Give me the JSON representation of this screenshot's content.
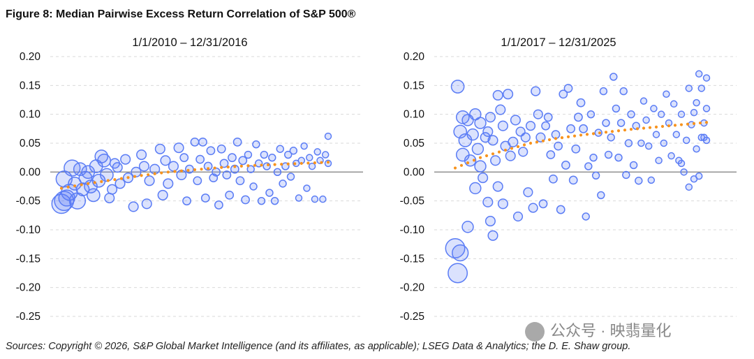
{
  "figure_title": "Figure 8: Median Pairwise Excess Return Correlation of S&P 500®",
  "source": "Sources: Copyright © 2026, S&P Global Market Intelligence (and its affiliates, as applicable); LSEG Data & Analytics; the D. E. Shaw group.",
  "watermark": "公众号 · 映翡量化",
  "colors": {
    "points": "#5a7cf5",
    "trend": "#f7931e",
    "zero_line": "#888888"
  },
  "chart_data": [
    {
      "type": "scatter",
      "title": "1/1/2010 – 12/31/2016",
      "xlabel": "",
      "ylabel": "",
      "ylim": [
        -0.25,
        0.2
      ],
      "xlim": [
        0,
        100
      ],
      "yticks": [
        "0.20",
        "0.15",
        "0.10",
        "0.05",
        "0.00",
        "-0.05",
        "-0.10",
        "-0.15",
        "-0.20",
        "-0.25"
      ],
      "grid": true,
      "points_format": [
        "x_index",
        "y",
        "relative_size"
      ],
      "points": [
        [
          0,
          -0.055,
          5
        ],
        [
          1,
          -0.05,
          5
        ],
        [
          2,
          -0.045,
          4
        ],
        [
          1,
          -0.012,
          4
        ],
        [
          3,
          -0.035,
          4
        ],
        [
          4,
          0.007,
          4
        ],
        [
          5,
          -0.02,
          3
        ],
        [
          6,
          -0.05,
          4
        ],
        [
          7,
          0.005,
          3
        ],
        [
          8,
          -0.03,
          3
        ],
        [
          9,
          -0.01,
          3
        ],
        [
          10,
          0.0,
          3
        ],
        [
          11,
          -0.025,
          3
        ],
        [
          12,
          -0.04,
          3
        ],
        [
          13,
          0.01,
          3
        ],
        [
          14,
          -0.015,
          3
        ],
        [
          15,
          0.027,
          3
        ],
        [
          16,
          0.02,
          3
        ],
        [
          17,
          -0.005,
          3
        ],
        [
          18,
          -0.045,
          2
        ],
        [
          19,
          -0.03,
          2
        ],
        [
          20,
          0.015,
          2
        ],
        [
          21,
          0.008,
          2
        ],
        [
          22,
          -0.02,
          2
        ],
        [
          24,
          0.022,
          2
        ],
        [
          25,
          -0.01,
          2
        ],
        [
          27,
          -0.06,
          2
        ],
        [
          28,
          0.0,
          2
        ],
        [
          30,
          0.03,
          2
        ],
        [
          31,
          0.01,
          2
        ],
        [
          32,
          -0.055,
          2
        ],
        [
          33,
          -0.015,
          2
        ],
        [
          35,
          0.005,
          2
        ],
        [
          37,
          0.04,
          2
        ],
        [
          38,
          -0.04,
          2
        ],
        [
          39,
          0.02,
          2
        ],
        [
          40,
          -0.02,
          2
        ],
        [
          42,
          0.01,
          2
        ],
        [
          44,
          0.042,
          2
        ],
        [
          45,
          -0.005,
          2
        ],
        [
          46,
          0.025,
          1.5
        ],
        [
          47,
          -0.05,
          1.5
        ],
        [
          48,
          0.005,
          1.5
        ],
        [
          50,
          0.052,
          1.5
        ],
        [
          51,
          -0.015,
          1.5
        ],
        [
          52,
          0.022,
          1.5
        ],
        [
          53,
          0.052,
          1.5
        ],
        [
          54,
          -0.045,
          1.5
        ],
        [
          55,
          0.01,
          1.5
        ],
        [
          56,
          0.037,
          1.5
        ],
        [
          57,
          -0.01,
          1.5
        ],
        [
          58,
          0.0,
          1.5
        ],
        [
          59,
          -0.057,
          1.5
        ],
        [
          60,
          0.04,
          1.5
        ],
        [
          61,
          0.015,
          1.5
        ],
        [
          62,
          -0.005,
          1.5
        ],
        [
          63,
          -0.04,
          1.5
        ],
        [
          64,
          0.025,
          1.5
        ],
        [
          65,
          0.005,
          1.5
        ],
        [
          66,
          0.052,
          1.5
        ],
        [
          67,
          -0.015,
          1.5
        ],
        [
          68,
          0.02,
          1.5
        ],
        [
          69,
          -0.048,
          1.5
        ],
        [
          70,
          0.03,
          1.2
        ],
        [
          71,
          0.005,
          1.2
        ],
        [
          72,
          -0.025,
          1.2
        ],
        [
          73,
          0.048,
          1.2
        ],
        [
          74,
          0.015,
          1.2
        ],
        [
          75,
          -0.05,
          1.2
        ],
        [
          76,
          0.03,
          1.2
        ],
        [
          77,
          0.01,
          1.2
        ],
        [
          78,
          -0.036,
          1.2
        ],
        [
          79,
          0.025,
          1.2
        ],
        [
          80,
          -0.05,
          1.2
        ],
        [
          81,
          0.0,
          1.2
        ],
        [
          82,
          0.04,
          1.2
        ],
        [
          83,
          -0.02,
          1.2
        ],
        [
          84,
          0.01,
          1.2
        ],
        [
          85,
          0.03,
          1.2
        ],
        [
          86,
          -0.008,
          1.2
        ],
        [
          87,
          0.037,
          1.2
        ],
        [
          88,
          0.015,
          1
        ],
        [
          89,
          -0.045,
          1
        ],
        [
          90,
          0.02,
          1
        ],
        [
          91,
          0.045,
          1
        ],
        [
          92,
          -0.028,
          1
        ],
        [
          93,
          0.025,
          1
        ],
        [
          94,
          0.01,
          1
        ],
        [
          95,
          -0.047,
          1
        ],
        [
          96,
          0.035,
          1
        ],
        [
          97,
          0.02,
          1
        ],
        [
          98,
          -0.047,
          1
        ],
        [
          99,
          0.03,
          1
        ],
        [
          100,
          0.062,
          1
        ],
        [
          100,
          0.015,
          1
        ]
      ],
      "trend": {
        "x": [
          0,
          10,
          20,
          30,
          40,
          50,
          60,
          70,
          80,
          90,
          100
        ],
        "y": [
          -0.028,
          -0.02,
          -0.013,
          -0.006,
          0.0,
          0.004,
          0.008,
          0.011,
          0.013,
          0.015,
          0.017
        ]
      }
    },
    {
      "type": "scatter",
      "title": "1/1/2017 – 12/31/2025",
      "xlabel": "",
      "ylabel": "",
      "ylim": [
        -0.25,
        0.2
      ],
      "xlim": [
        0,
        100
      ],
      "yticks": [
        "0.20",
        "0.15",
        "0.10",
        "0.05",
        "0.00",
        "-0.05",
        "-0.10",
        "-0.15",
        "-0.20",
        "-0.25"
      ],
      "grid": true,
      "points_format": [
        "x_index",
        "y",
        "relative_size"
      ],
      "points": [
        [
          1,
          0.148,
          3
        ],
        [
          1,
          -0.175,
          5
        ],
        [
          0,
          -0.132,
          5
        ],
        [
          2,
          -0.14,
          4
        ],
        [
          2,
          0.07,
          3
        ],
        [
          3,
          0.095,
          3
        ],
        [
          3,
          0.03,
          3
        ],
        [
          4,
          0.055,
          3
        ],
        [
          5,
          -0.095,
          2.5
        ],
        [
          5,
          0.09,
          2.5
        ],
        [
          6,
          0.02,
          2.5
        ],
        [
          7,
          0.065,
          2.5
        ],
        [
          8,
          -0.028,
          2.5
        ],
        [
          8,
          0.1,
          2.5
        ],
        [
          9,
          0.04,
          2.5
        ],
        [
          10,
          0.01,
          2.5
        ],
        [
          10,
          0.085,
          2.5
        ],
        [
          11,
          -0.01,
          2
        ],
        [
          12,
          0.06,
          2
        ],
        [
          13,
          -0.052,
          2
        ],
        [
          13,
          0.07,
          2
        ],
        [
          14,
          -0.085,
          2
        ],
        [
          14,
          0.095,
          2
        ],
        [
          15,
          0.055,
          2
        ],
        [
          15,
          -0.11,
          2
        ],
        [
          16,
          0.02,
          2
        ],
        [
          17,
          0.133,
          2
        ],
        [
          17,
          -0.025,
          2
        ],
        [
          18,
          0.108,
          2
        ],
        [
          19,
          0.08,
          2
        ],
        [
          19,
          -0.055,
          2
        ],
        [
          20,
          0.045,
          2
        ],
        [
          21,
          0.135,
          2
        ],
        [
          22,
          0.028,
          2
        ],
        [
          23,
          0.052,
          2
        ],
        [
          24,
          0.09,
          2
        ],
        [
          25,
          -0.077,
          1.8
        ],
        [
          26,
          0.07,
          1.8
        ],
        [
          27,
          0.035,
          1.8
        ],
        [
          28,
          0.06,
          1.8
        ],
        [
          29,
          -0.035,
          1.8
        ],
        [
          30,
          0.08,
          1.8
        ],
        [
          31,
          -0.062,
          1.8
        ],
        [
          32,
          0.14,
          1.8
        ],
        [
          33,
          0.1,
          1.8
        ],
        [
          34,
          0.06,
          1.8
        ],
        [
          35,
          -0.055,
          1.5
        ],
        [
          36,
          0.08,
          1.5
        ],
        [
          37,
          0.095,
          1.5
        ],
        [
          38,
          0.03,
          1.5
        ],
        [
          39,
          -0.012,
          1.5
        ],
        [
          40,
          0.065,
          1.5
        ],
        [
          41,
          0.045,
          1.5
        ],
        [
          42,
          -0.065,
          1.5
        ],
        [
          43,
          0.135,
          1.5
        ],
        [
          44,
          0.012,
          1.5
        ],
        [
          45,
          0.145,
          1.5
        ],
        [
          46,
          0.075,
          1.5
        ],
        [
          47,
          -0.014,
          1.5
        ],
        [
          48,
          0.04,
          1.5
        ],
        [
          49,
          0.095,
          1.5
        ],
        [
          50,
          0.12,
          1.5
        ],
        [
          51,
          0.075,
          1.5
        ],
        [
          52,
          -0.077,
          1.2
        ],
        [
          53,
          0.01,
          1.2
        ],
        [
          54,
          0.1,
          1.2
        ],
        [
          55,
          0.025,
          1.2
        ],
        [
          56,
          -0.006,
          1.2
        ],
        [
          57,
          0.068,
          1.2
        ],
        [
          58,
          -0.04,
          1.2
        ],
        [
          59,
          0.14,
          1.2
        ],
        [
          60,
          0.085,
          1.2
        ],
        [
          61,
          0.03,
          1.2
        ],
        [
          62,
          0.06,
          1.2
        ],
        [
          63,
          0.165,
          1.2
        ],
        [
          64,
          0.11,
          1.2
        ],
        [
          65,
          0.025,
          1.2
        ],
        [
          66,
          0.085,
          1.2
        ],
        [
          67,
          0.14,
          1.2
        ],
        [
          68,
          -0.005,
          1.2
        ],
        [
          69,
          0.05,
          1.2
        ],
        [
          70,
          0.1,
          1.2
        ],
        [
          71,
          0.012,
          1.2
        ],
        [
          72,
          0.08,
          1.2
        ],
        [
          73,
          -0.015,
          1.2
        ],
        [
          74,
          0.05,
          1
        ],
        [
          75,
          0.123,
          1
        ],
        [
          76,
          0.09,
          1
        ],
        [
          77,
          0.045,
          1
        ],
        [
          78,
          -0.014,
          1
        ],
        [
          79,
          0.11,
          1
        ],
        [
          80,
          0.065,
          1
        ],
        [
          81,
          0.02,
          1
        ],
        [
          82,
          0.1,
          1
        ],
        [
          83,
          0.05,
          1
        ],
        [
          84,
          0.135,
          1
        ],
        [
          85,
          0.085,
          1
        ],
        [
          86,
          0.028,
          1
        ],
        [
          87,
          0.118,
          1
        ],
        [
          88,
          0.065,
          1
        ],
        [
          89,
          0.02,
          1
        ],
        [
          90,
          0.1,
          1
        ],
        [
          91,
          0.0,
          1
        ],
        [
          92,
          0.055,
          1
        ],
        [
          93,
          -0.026,
          1
        ],
        [
          94,
          0.082,
          1
        ],
        [
          95,
          0.103,
          1
        ],
        [
          96,
          0.04,
          1
        ],
        [
          97,
          -0.007,
          1
        ],
        [
          98,
          0.145,
          1
        ],
        [
          99,
          0.06,
          1
        ],
        [
          100,
          0.11,
          1
        ],
        [
          93,
          0.145,
          1
        ],
        [
          96,
          0.12,
          1
        ],
        [
          97,
          0.17,
          1
        ],
        [
          99,
          0.085,
          1
        ],
        [
          100,
          0.163,
          1
        ],
        [
          100,
          0.055,
          1
        ],
        [
          98,
          0.06,
          1
        ],
        [
          95,
          -0.012,
          1
        ],
        [
          90,
          0.015,
          1
        ]
      ],
      "trend": {
        "x": [
          0,
          10,
          20,
          30,
          40,
          50,
          60,
          70,
          80,
          90,
          100
        ],
        "y": [
          0.007,
          0.025,
          0.038,
          0.05,
          0.058,
          0.064,
          0.069,
          0.074,
          0.078,
          0.082,
          0.086
        ]
      }
    }
  ]
}
